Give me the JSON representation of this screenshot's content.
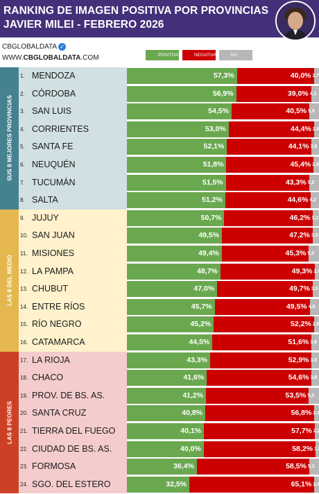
{
  "header": {
    "title_line1": "RANKING DE IMAGEN POSITIVA POR PROVINCIAS",
    "title_line2": "JAVIER MILEI - FEBRERO 2026",
    "brand_name": "CBGLOBALDATA",
    "brand_url_prefix": "WWW.",
    "brand_url_bold": "CBGLOBALDATA",
    "brand_url_suffix": ".COM"
  },
  "colors": {
    "header_bg": "#44307a",
    "positiva": "#6aa84f",
    "negativa": "#cc0000",
    "nsnc": "#b7b7b7",
    "group_top_bg": "#d0e0e3",
    "group_top_strip": "#45818e",
    "group_mid_bg": "#fff2cc",
    "group_mid_strip": "#e5b84f",
    "group_low_bg": "#f4cccc",
    "group_low_strip": "#cc4125"
  },
  "chart_data": {
    "type": "bar",
    "stacked": true,
    "orientation": "horizontal",
    "title": "RANKING DE IMAGEN POSITIVA POR PROVINCIAS",
    "subtitle": "JAVIER MILEI - FEBRERO 2026",
    "legend": [
      {
        "key": "positiva",
        "label": "POSITIVA"
      },
      {
        "key": "negativa",
        "label": "NEGATIVA"
      },
      {
        "key": "nsnc",
        "label": "NS / NC"
      }
    ],
    "groups": [
      {
        "label": "SUS 8 MEJORES PROVINCIAS",
        "from": 1,
        "to": 8
      },
      {
        "label": "LAS 8 DEL MEDIO",
        "from": 9,
        "to": 16
      },
      {
        "label": "LAS 8 PEORES",
        "from": 17,
        "to": 24
      }
    ],
    "rows": [
      {
        "rank": "1.",
        "province": "MENDOZA",
        "positiva": 57.3,
        "negativa": 40.0,
        "nsnc": 2.7,
        "positiva_label": "57,3%",
        "negativa_label": "40,0%",
        "nsnc_label": "2,7"
      },
      {
        "rank": "2.",
        "province": "CÓRDOBA",
        "positiva": 56.9,
        "negativa": 39.0,
        "nsnc": 4.1,
        "positiva_label": "56,9%",
        "negativa_label": "39,0%",
        "nsnc_label": "4,1"
      },
      {
        "rank": "3.",
        "province": "SAN LUIS",
        "positiva": 54.5,
        "negativa": 40.5,
        "nsnc": 5.0,
        "positiva_label": "54,5%",
        "negativa_label": "40,5%",
        "nsnc_label": "5,0"
      },
      {
        "rank": "4.",
        "province": "CORRIENTES",
        "positiva": 53.0,
        "negativa": 44.4,
        "nsnc": 2.6,
        "positiva_label": "53,0%",
        "negativa_label": "44,4%",
        "nsnc_label": "2,6"
      },
      {
        "rank": "5.",
        "province": "SANTA FE",
        "positiva": 52.1,
        "negativa": 44.1,
        "nsnc": 3.8,
        "positiva_label": "52,1%",
        "negativa_label": "44,1%",
        "nsnc_label": "3,8"
      },
      {
        "rank": "6.",
        "province": "NEUQUÉN",
        "positiva": 51.8,
        "negativa": 45.4,
        "nsnc": 2.8,
        "positiva_label": "51,8%",
        "negativa_label": "45,4%",
        "nsnc_label": "2,8"
      },
      {
        "rank": "7.",
        "province": "TUCUMÁN",
        "positiva": 51.5,
        "negativa": 43.3,
        "nsnc": 5.2,
        "positiva_label": "51,5%",
        "negativa_label": "43,3%",
        "nsnc_label": "5,2"
      },
      {
        "rank": "8.",
        "province": "SALTA",
        "positiva": 51.2,
        "negativa": 44.6,
        "nsnc": 4.2,
        "positiva_label": "51,2%",
        "negativa_label": "44,6%",
        "nsnc_label": "4,2"
      },
      {
        "rank": "9.",
        "province": "JUJUY",
        "positiva": 50.7,
        "negativa": 46.2,
        "nsnc": 3.1,
        "positiva_label": "50,7%",
        "negativa_label": "46,2%",
        "nsnc_label": "3,1"
      },
      {
        "rank": "10.",
        "province": "SAN JUAN",
        "positiva": 49.5,
        "negativa": 47.2,
        "nsnc": 3.3,
        "positiva_label": "49,5%",
        "negativa_label": "47,2%",
        "nsnc_label": "3,3"
      },
      {
        "rank": "11.",
        "province": "MISIONES",
        "positiva": 49.4,
        "negativa": 45.3,
        "nsnc": 5.3,
        "positiva_label": "49,4%",
        "negativa_label": "45,3%",
        "nsnc_label": "5,3"
      },
      {
        "rank": "12.",
        "province": "LA PAMPA",
        "positiva": 48.7,
        "negativa": 49.3,
        "nsnc": 2.0,
        "positiva_label": "48,7%",
        "negativa_label": "49,3%",
        "nsnc_label": "2,0"
      },
      {
        "rank": "13.",
        "province": "CHUBUT",
        "positiva": 47.0,
        "negativa": 49.7,
        "nsnc": 3.3,
        "positiva_label": "47,0%",
        "negativa_label": "49,7%",
        "nsnc_label": "3,3"
      },
      {
        "rank": "14.",
        "province": "ENTRE RÍOS",
        "positiva": 45.7,
        "negativa": 49.5,
        "nsnc": 4.8,
        "positiva_label": "45,7%",
        "negativa_label": "49,5%",
        "nsnc_label": "4,8"
      },
      {
        "rank": "15.",
        "province": "RÍO NEGRO",
        "positiva": 45.2,
        "negativa": 52.2,
        "nsnc": 2.6,
        "positiva_label": "45,2%",
        "negativa_label": "52,2%",
        "nsnc_label": "2,6"
      },
      {
        "rank": "16.",
        "province": "CATAMARCA",
        "positiva": 44.5,
        "negativa": 51.6,
        "nsnc": 3.9,
        "positiva_label": "44,5%",
        "negativa_label": "51,6%",
        "nsnc_label": "3,9"
      },
      {
        "rank": "17.",
        "province": "LA RIOJA",
        "positiva": 43.3,
        "negativa": 52.9,
        "nsnc": 3.8,
        "positiva_label": "43,3%",
        "negativa_label": "52,9%",
        "nsnc_label": "3,8"
      },
      {
        "rank": "18.",
        "province": "CHACO",
        "positiva": 41.6,
        "negativa": 54.6,
        "nsnc": 3.8,
        "positiva_label": "41,6%",
        "negativa_label": "54,6%",
        "nsnc_label": "3,8"
      },
      {
        "rank": "19.",
        "province": "PROV. DE BS. AS.",
        "positiva": 41.2,
        "negativa": 53.5,
        "nsnc": 5.3,
        "positiva_label": "41,2%",
        "negativa_label": "53,5%",
        "nsnc_label": "5,3"
      },
      {
        "rank": "20.",
        "province": "SANTA CRUZ",
        "positiva": 40.8,
        "negativa": 56.8,
        "nsnc": 2.4,
        "positiva_label": "40,8%",
        "negativa_label": "56,8%",
        "nsnc_label": "2,4"
      },
      {
        "rank": "21.",
        "province": "TIERRA DEL FUEGO",
        "positiva": 40.1,
        "negativa": 57.7,
        "nsnc": 2.2,
        "positiva_label": "40,1%",
        "negativa_label": "57,7%",
        "nsnc_label": "2,2"
      },
      {
        "rank": "22.",
        "province": "CIUDAD DE BS. AS.",
        "positiva": 40.0,
        "negativa": 58.2,
        "nsnc": 1.8,
        "positiva_label": "40,0%",
        "negativa_label": "58,2%",
        "nsnc_label": "1,8"
      },
      {
        "rank": "23.",
        "province": "FORMOSA",
        "positiva": 36.4,
        "negativa": 58.5,
        "nsnc": 5.1,
        "positiva_label": "36,4%",
        "negativa_label": "58,5%",
        "nsnc_label": "5,1"
      },
      {
        "rank": "24.",
        "province": "SGO. DEL ESTERO",
        "positiva": 32.5,
        "negativa": 65.1,
        "nsnc": 2.4,
        "positiva_label": "32,5%",
        "negativa_label": "65,1%",
        "nsnc_label": "2,4"
      }
    ]
  }
}
